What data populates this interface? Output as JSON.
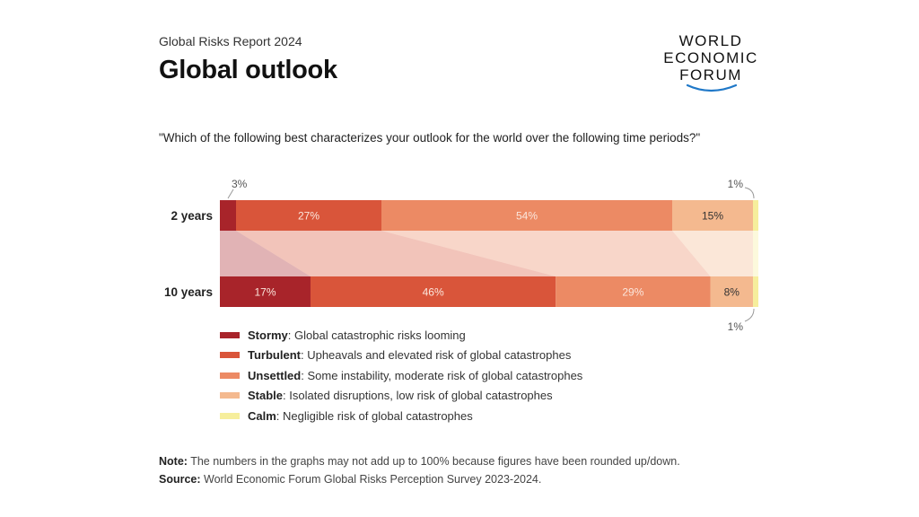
{
  "header": {
    "report_label": "Global Risks Report 2024",
    "title": "Global outlook",
    "logo_lines": [
      "WORLD",
      "ECONOMIC",
      "FORUM"
    ]
  },
  "question": "\"Which of the following best characterizes your outlook for the world over the following time periods?\"",
  "chart_data": {
    "type": "bar",
    "orientation": "horizontal-stacked-100",
    "categories": [
      "2 years",
      "10 years"
    ],
    "series": [
      {
        "name": "Stormy",
        "values": [
          3,
          17
        ],
        "labels": [
          "3%",
          "17%"
        ],
        "color": "#a8242a"
      },
      {
        "name": "Turbulent",
        "values": [
          27,
          46
        ],
        "labels": [
          "27%",
          "46%"
        ],
        "color": "#d9553a"
      },
      {
        "name": "Unsettled",
        "values": [
          54,
          29
        ],
        "labels": [
          "54%",
          "29%"
        ],
        "color": "#ec8a64"
      },
      {
        "name": "Stable",
        "values": [
          15,
          8
        ],
        "labels": [
          "15%",
          "8%"
        ],
        "color": "#f4b98f"
      },
      {
        "name": "Calm",
        "values": [
          1,
          1
        ],
        "labels": [
          "1%",
          "1%"
        ],
        "color": "#f6ee9c"
      }
    ],
    "legend_position": "bottom-left"
  },
  "legend": [
    {
      "name": "Stormy",
      "desc": ": Global catastrophic risks looming",
      "color": "#a8242a"
    },
    {
      "name": "Turbulent",
      "desc": ": Upheavals and elevated risk of global catastrophes",
      "color": "#d9553a"
    },
    {
      "name": "Unsettled",
      "desc": ": Some instability, moderate risk of global catastrophes",
      "color": "#ec8a64"
    },
    {
      "name": "Stable",
      "desc": ": Isolated disruptions, low risk of global catastrophes",
      "color": "#f4b98f"
    },
    {
      "name": "Calm",
      "desc": ": Negligible risk of global catastrophes",
      "color": "#f6ee9c"
    }
  ],
  "footer": {
    "note_label": "Note:",
    "note_text": " The numbers in the graphs may not add up to 100% because figures have been rounded up/down.",
    "source_label": "Source:",
    "source_text": " World Economic Forum Global Risks Perception Survey 2023-2024."
  }
}
